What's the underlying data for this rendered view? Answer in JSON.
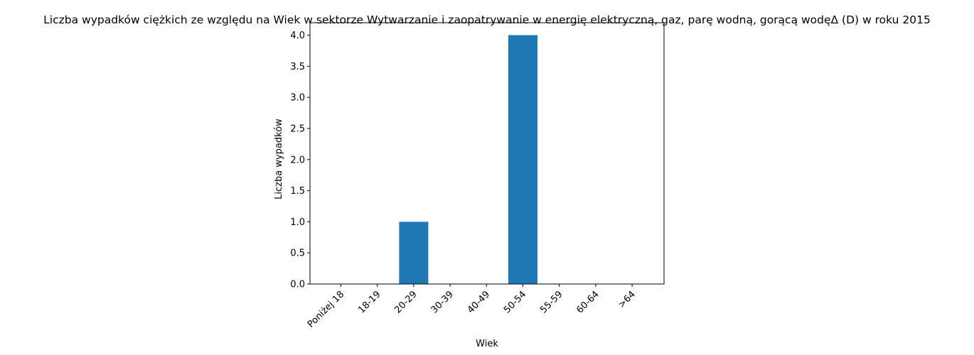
{
  "chart_data": {
    "type": "bar",
    "title": "Liczba wypadków ciężkich ze względu na Wiek w sektorze Wytwarzanie i zaopatrywanie w energię elektryczną, gaz, parę wodną, gorącą wodęΔ  (D) w roku 2015",
    "xlabel": "Wiek",
    "ylabel": "Liczba wypadków",
    "categories": [
      "Poniżej 18",
      "18-19",
      "20-29",
      "30-39",
      "40-49",
      "50-54",
      "55-59",
      "60-64",
      ">64"
    ],
    "values": [
      0,
      0,
      1,
      0,
      0,
      4,
      0,
      0,
      0
    ],
    "ylim": [
      0,
      4.2
    ],
    "yticks": [
      0.0,
      0.5,
      1.0,
      1.5,
      2.0,
      2.5,
      3.0,
      3.5,
      4.0
    ],
    "ytick_labels": [
      "0.0",
      "0.5",
      "1.0",
      "1.5",
      "2.0",
      "2.5",
      "3.0",
      "3.5",
      "4.0"
    ],
    "grid": false,
    "legend": "none",
    "bar_color": "#1f77b4"
  }
}
